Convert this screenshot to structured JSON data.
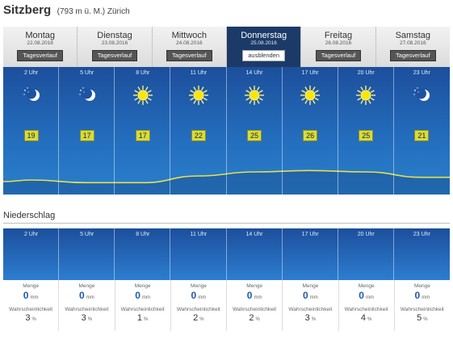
{
  "location": {
    "name": "Sitzberg",
    "detail": "(793 m ü. M.) Zürich"
  },
  "days": [
    {
      "name": "Montag",
      "date": "22.08.2016",
      "button": "Tagesverlauf",
      "active": false
    },
    {
      "name": "Dienstag",
      "date": "23.08.2016",
      "button": "Tagesverlauf",
      "active": false
    },
    {
      "name": "Mittwoch",
      "date": "24.08.2016",
      "button": "Tagesverlauf",
      "active": false
    },
    {
      "name": "Donnerstag",
      "date": "25.08.2016",
      "button": "ausblenden",
      "active": true
    },
    {
      "name": "Freitag",
      "date": "26.08.2016",
      "button": "Tagesverlauf",
      "active": false
    },
    {
      "name": "Samstag",
      "date": "27.08.2016",
      "button": "Tagesverlauf",
      "active": false
    }
  ],
  "forecast": [
    {
      "time": "2 Uhr",
      "icon": "moon-stars-icon",
      "temp": "19"
    },
    {
      "time": "5 Uhr",
      "icon": "moon-stars-icon",
      "temp": "17"
    },
    {
      "time": "8 Uhr",
      "icon": "sun-icon",
      "temp": "17"
    },
    {
      "time": "11 Uhr",
      "icon": "sun-icon",
      "temp": "22"
    },
    {
      "time": "14 Uhr",
      "icon": "sun-icon",
      "temp": "25"
    },
    {
      "time": "17 Uhr",
      "icon": "sun-icon",
      "temp": "26"
    },
    {
      "time": "20 Uhr",
      "icon": "sun-icon",
      "temp": "25"
    },
    {
      "time": "23 Uhr",
      "icon": "moon-stars-icon",
      "temp": "21"
    }
  ],
  "precipitation": {
    "title": "Niederschlag",
    "amount_label": "Menge",
    "amount_unit": "mm",
    "prob_label": "Wahrscheinlichkeit",
    "prob_unit": "%",
    "items": [
      {
        "time": "2 Uhr",
        "amount": "0",
        "prob": "3"
      },
      {
        "time": "5 Uhr",
        "amount": "0",
        "prob": "3"
      },
      {
        "time": "8 Uhr",
        "amount": "0",
        "prob": "1"
      },
      {
        "time": "11 Uhr",
        "amount": "0",
        "prob": "2"
      },
      {
        "time": "14 Uhr",
        "amount": "0",
        "prob": "2"
      },
      {
        "time": "17 Uhr",
        "amount": "0",
        "prob": "3"
      },
      {
        "time": "20 Uhr",
        "amount": "0",
        "prob": "4"
      },
      {
        "time": "23 Uhr",
        "amount": "0",
        "prob": "5"
      }
    ]
  },
  "colors": {
    "panel_top": "#1c4f9c",
    "panel_bottom": "#2a80cc",
    "temp_badge": "#d7dc3c",
    "active_tab": "#1c3a67",
    "curve": "#e8e04a"
  }
}
